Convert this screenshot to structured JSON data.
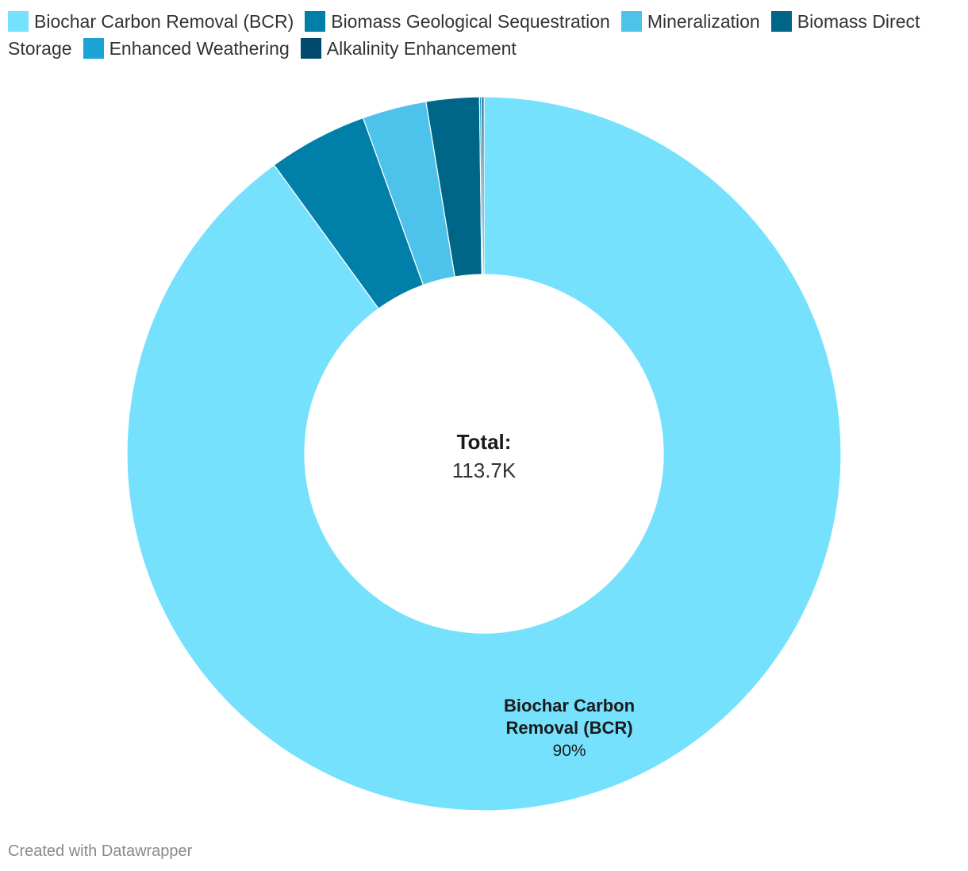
{
  "chart_data": {
    "type": "pie",
    "variant": "donut",
    "legend_position": "top",
    "center": {
      "title": "Total:",
      "value": "113.7K"
    },
    "series": [
      {
        "name": "Biochar Carbon Removal (BCR)",
        "percent": 90.0,
        "color": "#75e1fd"
      },
      {
        "name": "Biomass Geological Sequestration",
        "percent": 4.5,
        "color": "#007fa8"
      },
      {
        "name": "Mineralization",
        "percent": 2.9,
        "color": "#4dc3ec"
      },
      {
        "name": "Biomass Direct Storage",
        "percent": 2.4,
        "color": "#006688"
      },
      {
        "name": "Enhanced Weathering",
        "percent": 0.1,
        "color": "#1aa3d3"
      },
      {
        "name": "Alkalinity Enhancement",
        "percent": 0.1,
        "color": "#004a6e"
      }
    ],
    "labels": [
      {
        "series": "Biochar Carbon Removal (BCR)",
        "lines": [
          "Biochar Carbon",
          "Removal (BCR)"
        ],
        "value": "90%"
      }
    ]
  },
  "footer": "Created with Datawrapper"
}
